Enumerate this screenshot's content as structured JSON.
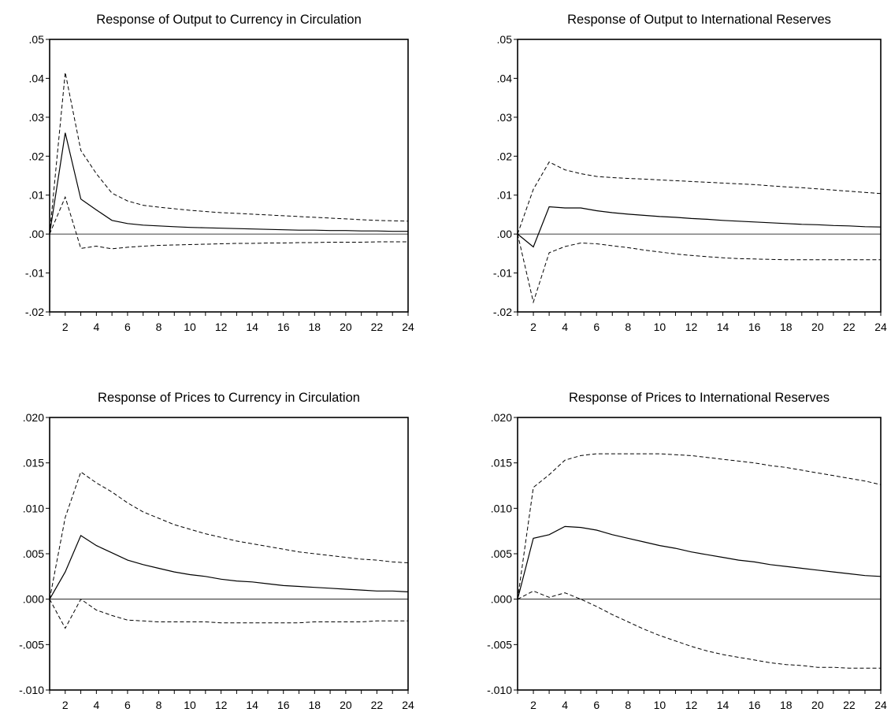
{
  "chart_data": [
    {
      "type": "line",
      "title": "Response of Output to Currency in Circulation",
      "x": [
        1,
        2,
        3,
        4,
        5,
        6,
        7,
        8,
        9,
        10,
        11,
        12,
        13,
        14,
        15,
        16,
        17,
        18,
        19,
        20,
        21,
        22,
        23,
        24
      ],
      "xticks": [
        "2",
        "4",
        "6",
        "8",
        "10",
        "12",
        "14",
        "16",
        "18",
        "20",
        "22",
        "24"
      ],
      "ylim": [
        -0.02,
        0.05
      ],
      "yticks": [
        ".05",
        ".04",
        ".03",
        ".02",
        ".01",
        ".00",
        "-.01",
        "-.02"
      ],
      "series": [
        {
          "style": "solid",
          "values": [
            0.0,
            0.026,
            0.009,
            0.0062,
            0.0035,
            0.0027,
            0.0023,
            0.0021,
            0.0019,
            0.0017,
            0.0016,
            0.0015,
            0.0014,
            0.0013,
            0.0012,
            0.0011,
            0.001,
            0.001,
            0.0009,
            0.0009,
            0.0008,
            0.0008,
            0.0007,
            0.0007
          ]
        },
        {
          "style": "dashed",
          "values": [
            0.0,
            0.0415,
            0.0215,
            0.0155,
            0.0105,
            0.0085,
            0.0074,
            0.0069,
            0.0065,
            0.0061,
            0.0058,
            0.0055,
            0.0053,
            0.0051,
            0.0049,
            0.0047,
            0.0045,
            0.0043,
            0.0041,
            0.0039,
            0.0037,
            0.0035,
            0.0034,
            0.0033
          ]
        },
        {
          "style": "dashed",
          "values": [
            0.0,
            0.0095,
            -0.0037,
            -0.0031,
            -0.0038,
            -0.0034,
            -0.0031,
            -0.0029,
            -0.0028,
            -0.0027,
            -0.0026,
            -0.0025,
            -0.0024,
            -0.0024,
            -0.0023,
            -0.0023,
            -0.0022,
            -0.0022,
            -0.0021,
            -0.0021,
            -0.0021,
            -0.002,
            -0.002,
            -0.002
          ]
        }
      ]
    },
    {
      "type": "line",
      "title": "Response of Output to International Reserves",
      "x": [
        1,
        2,
        3,
        4,
        5,
        6,
        7,
        8,
        9,
        10,
        11,
        12,
        13,
        14,
        15,
        16,
        17,
        18,
        19,
        20,
        21,
        22,
        23,
        24
      ],
      "xticks": [
        "2",
        "4",
        "6",
        "8",
        "10",
        "12",
        "14",
        "16",
        "18",
        "20",
        "22",
        "24"
      ],
      "ylim": [
        -0.02,
        0.05
      ],
      "yticks": [
        ".05",
        ".04",
        ".03",
        ".02",
        ".01",
        ".00",
        "-.01",
        "-.02"
      ],
      "series": [
        {
          "style": "solid",
          "values": [
            0.0,
            -0.0033,
            0.007,
            0.0067,
            0.0067,
            0.006,
            0.0055,
            0.0051,
            0.0048,
            0.0045,
            0.0043,
            0.004,
            0.0038,
            0.0035,
            0.0033,
            0.0031,
            0.0029,
            0.0027,
            0.0025,
            0.0024,
            0.0022,
            0.0021,
            0.0019,
            0.0018
          ]
        },
        {
          "style": "dashed",
          "values": [
            0.0,
            0.0115,
            0.0185,
            0.0165,
            0.0155,
            0.0148,
            0.0145,
            0.0143,
            0.0141,
            0.0139,
            0.0137,
            0.0135,
            0.0133,
            0.0131,
            0.0129,
            0.0127,
            0.0124,
            0.0121,
            0.0119,
            0.0116,
            0.0113,
            0.011,
            0.0107,
            0.0104
          ]
        },
        {
          "style": "dashed",
          "values": [
            0.0,
            -0.0175,
            -0.0048,
            -0.0032,
            -0.0023,
            -0.0025,
            -0.003,
            -0.0035,
            -0.0041,
            -0.0046,
            -0.0051,
            -0.0055,
            -0.0058,
            -0.0061,
            -0.0063,
            -0.0064,
            -0.0065,
            -0.0066,
            -0.0066,
            -0.0066,
            -0.0066,
            -0.0066,
            -0.0066,
            -0.0066
          ]
        }
      ]
    },
    {
      "type": "line",
      "title": "Response of Prices to Currency in Circulation",
      "x": [
        1,
        2,
        3,
        4,
        5,
        6,
        7,
        8,
        9,
        10,
        11,
        12,
        13,
        14,
        15,
        16,
        17,
        18,
        19,
        20,
        21,
        22,
        23,
        24
      ],
      "xticks": [
        "2",
        "4",
        "6",
        "8",
        "10",
        "12",
        "14",
        "16",
        "18",
        "20",
        "22",
        "24"
      ],
      "ylim": [
        -0.01,
        0.02
      ],
      "yticks": [
        ".020",
        ".015",
        ".010",
        ".005",
        ".000",
        "-.005",
        "-.010"
      ],
      "series": [
        {
          "style": "solid",
          "values": [
            0.0,
            0.003,
            0.007,
            0.0059,
            0.0051,
            0.0043,
            0.0038,
            0.0034,
            0.003,
            0.0027,
            0.0025,
            0.0022,
            0.002,
            0.0019,
            0.0017,
            0.0015,
            0.0014,
            0.0013,
            0.0012,
            0.0011,
            0.001,
            0.0009,
            0.0009,
            0.0008
          ]
        },
        {
          "style": "dashed",
          "values": [
            0.0,
            0.009,
            0.014,
            0.0128,
            0.0118,
            0.0106,
            0.0096,
            0.0089,
            0.0082,
            0.0077,
            0.0072,
            0.0068,
            0.0064,
            0.0061,
            0.0058,
            0.0055,
            0.0052,
            0.005,
            0.0048,
            0.0046,
            0.0044,
            0.0043,
            0.0041,
            0.004
          ]
        },
        {
          "style": "dashed",
          "values": [
            0.0,
            -0.0032,
            0.0,
            -0.0012,
            -0.0018,
            -0.0023,
            -0.0024,
            -0.0025,
            -0.0025,
            -0.0025,
            -0.0025,
            -0.0026,
            -0.0026,
            -0.0026,
            -0.0026,
            -0.0026,
            -0.0026,
            -0.0025,
            -0.0025,
            -0.0025,
            -0.0025,
            -0.0024,
            -0.0024,
            -0.0024
          ]
        }
      ]
    },
    {
      "type": "line",
      "title": "Response of Prices to International Reserves",
      "x": [
        1,
        2,
        3,
        4,
        5,
        6,
        7,
        8,
        9,
        10,
        11,
        12,
        13,
        14,
        15,
        16,
        17,
        18,
        19,
        20,
        21,
        22,
        23,
        24
      ],
      "xticks": [
        "2",
        "4",
        "6",
        "8",
        "10",
        "12",
        "14",
        "16",
        "18",
        "20",
        "22",
        "24"
      ],
      "ylim": [
        -0.01,
        0.02
      ],
      "yticks": [
        ".020",
        ".015",
        ".010",
        ".005",
        ".000",
        "-.005",
        "-.010"
      ],
      "series": [
        {
          "style": "solid",
          "values": [
            0.0,
            0.0067,
            0.0071,
            0.008,
            0.0079,
            0.0076,
            0.0071,
            0.0067,
            0.0063,
            0.0059,
            0.0056,
            0.0052,
            0.0049,
            0.0046,
            0.0043,
            0.0041,
            0.0038,
            0.0036,
            0.0034,
            0.0032,
            0.003,
            0.0028,
            0.0026,
            0.0025
          ]
        },
        {
          "style": "dashed",
          "values": [
            0.0,
            0.0123,
            0.0137,
            0.0153,
            0.0158,
            0.016,
            0.016,
            0.016,
            0.016,
            0.016,
            0.0159,
            0.0158,
            0.0156,
            0.0154,
            0.0152,
            0.015,
            0.0147,
            0.0145,
            0.0142,
            0.0139,
            0.0136,
            0.0133,
            0.013,
            0.0126
          ]
        },
        {
          "style": "dashed",
          "values": [
            0.0,
            0.0009,
            0.0002,
            0.0007,
            0.0,
            -0.0008,
            -0.0017,
            -0.0025,
            -0.0033,
            -0.004,
            -0.0046,
            -0.0052,
            -0.0057,
            -0.0061,
            -0.0064,
            -0.0067,
            -0.007,
            -0.0072,
            -0.0073,
            -0.0075,
            -0.0075,
            -0.0076,
            -0.0076,
            -0.0076
          ]
        }
      ]
    }
  ]
}
